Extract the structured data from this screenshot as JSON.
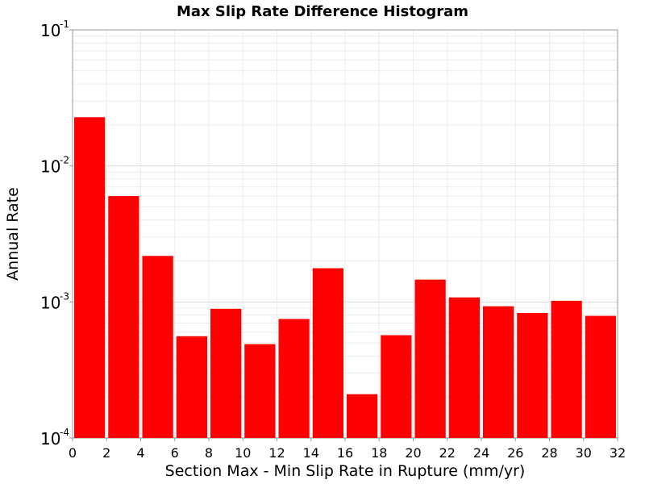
{
  "chart_data": {
    "type": "bar",
    "title": "Max Slip Rate Difference Histogram",
    "xlabel": "Section Max - Min Slip Rate in Rupture (mm/yr)",
    "ylabel": "Annual Rate",
    "x_ticks": [
      "0",
      "2",
      "4",
      "6",
      "8",
      "10",
      "12",
      "14",
      "16",
      "18",
      "20",
      "22",
      "24",
      "26",
      "28",
      "30",
      "32"
    ],
    "y_ticks": [
      {
        "base": "10",
        "exp": "-1",
        "value": 0.1
      },
      {
        "base": "10",
        "exp": "-2",
        "value": 0.01
      },
      {
        "base": "10",
        "exp": "-3",
        "value": 0.001
      },
      {
        "base": "10",
        "exp": "-4",
        "value": 0.0001
      }
    ],
    "xlim": [
      0,
      32
    ],
    "ylim": [
      0.0001,
      0.1
    ],
    "y_scale": "log",
    "grid": true,
    "bar_color": "#ff0000",
    "bin_width": 2,
    "bins": [
      {
        "x0": 0,
        "x1": 2,
        "value": 0.0228
      },
      {
        "x0": 2,
        "x1": 4,
        "value": 0.006
      },
      {
        "x0": 4,
        "x1": 6,
        "value": 0.00218
      },
      {
        "x0": 6,
        "x1": 8,
        "value": 0.00056
      },
      {
        "x0": 8,
        "x1": 10,
        "value": 0.00089
      },
      {
        "x0": 10,
        "x1": 12,
        "value": 0.00049
      },
      {
        "x0": 12,
        "x1": 14,
        "value": 0.00075
      },
      {
        "x0": 14,
        "x1": 16,
        "value": 0.00177
      },
      {
        "x0": 16,
        "x1": 18,
        "value": 0.00021
      },
      {
        "x0": 18,
        "x1": 20,
        "value": 0.00057
      },
      {
        "x0": 20,
        "x1": 22,
        "value": 0.00146
      },
      {
        "x0": 22,
        "x1": 24,
        "value": 0.00108
      },
      {
        "x0": 24,
        "x1": 26,
        "value": 0.00093
      },
      {
        "x0": 26,
        "x1": 28,
        "value": 0.00083
      },
      {
        "x0": 28,
        "x1": 30,
        "value": 0.00102
      },
      {
        "x0": 30,
        "x1": 32,
        "value": 0.00079
      }
    ]
  }
}
